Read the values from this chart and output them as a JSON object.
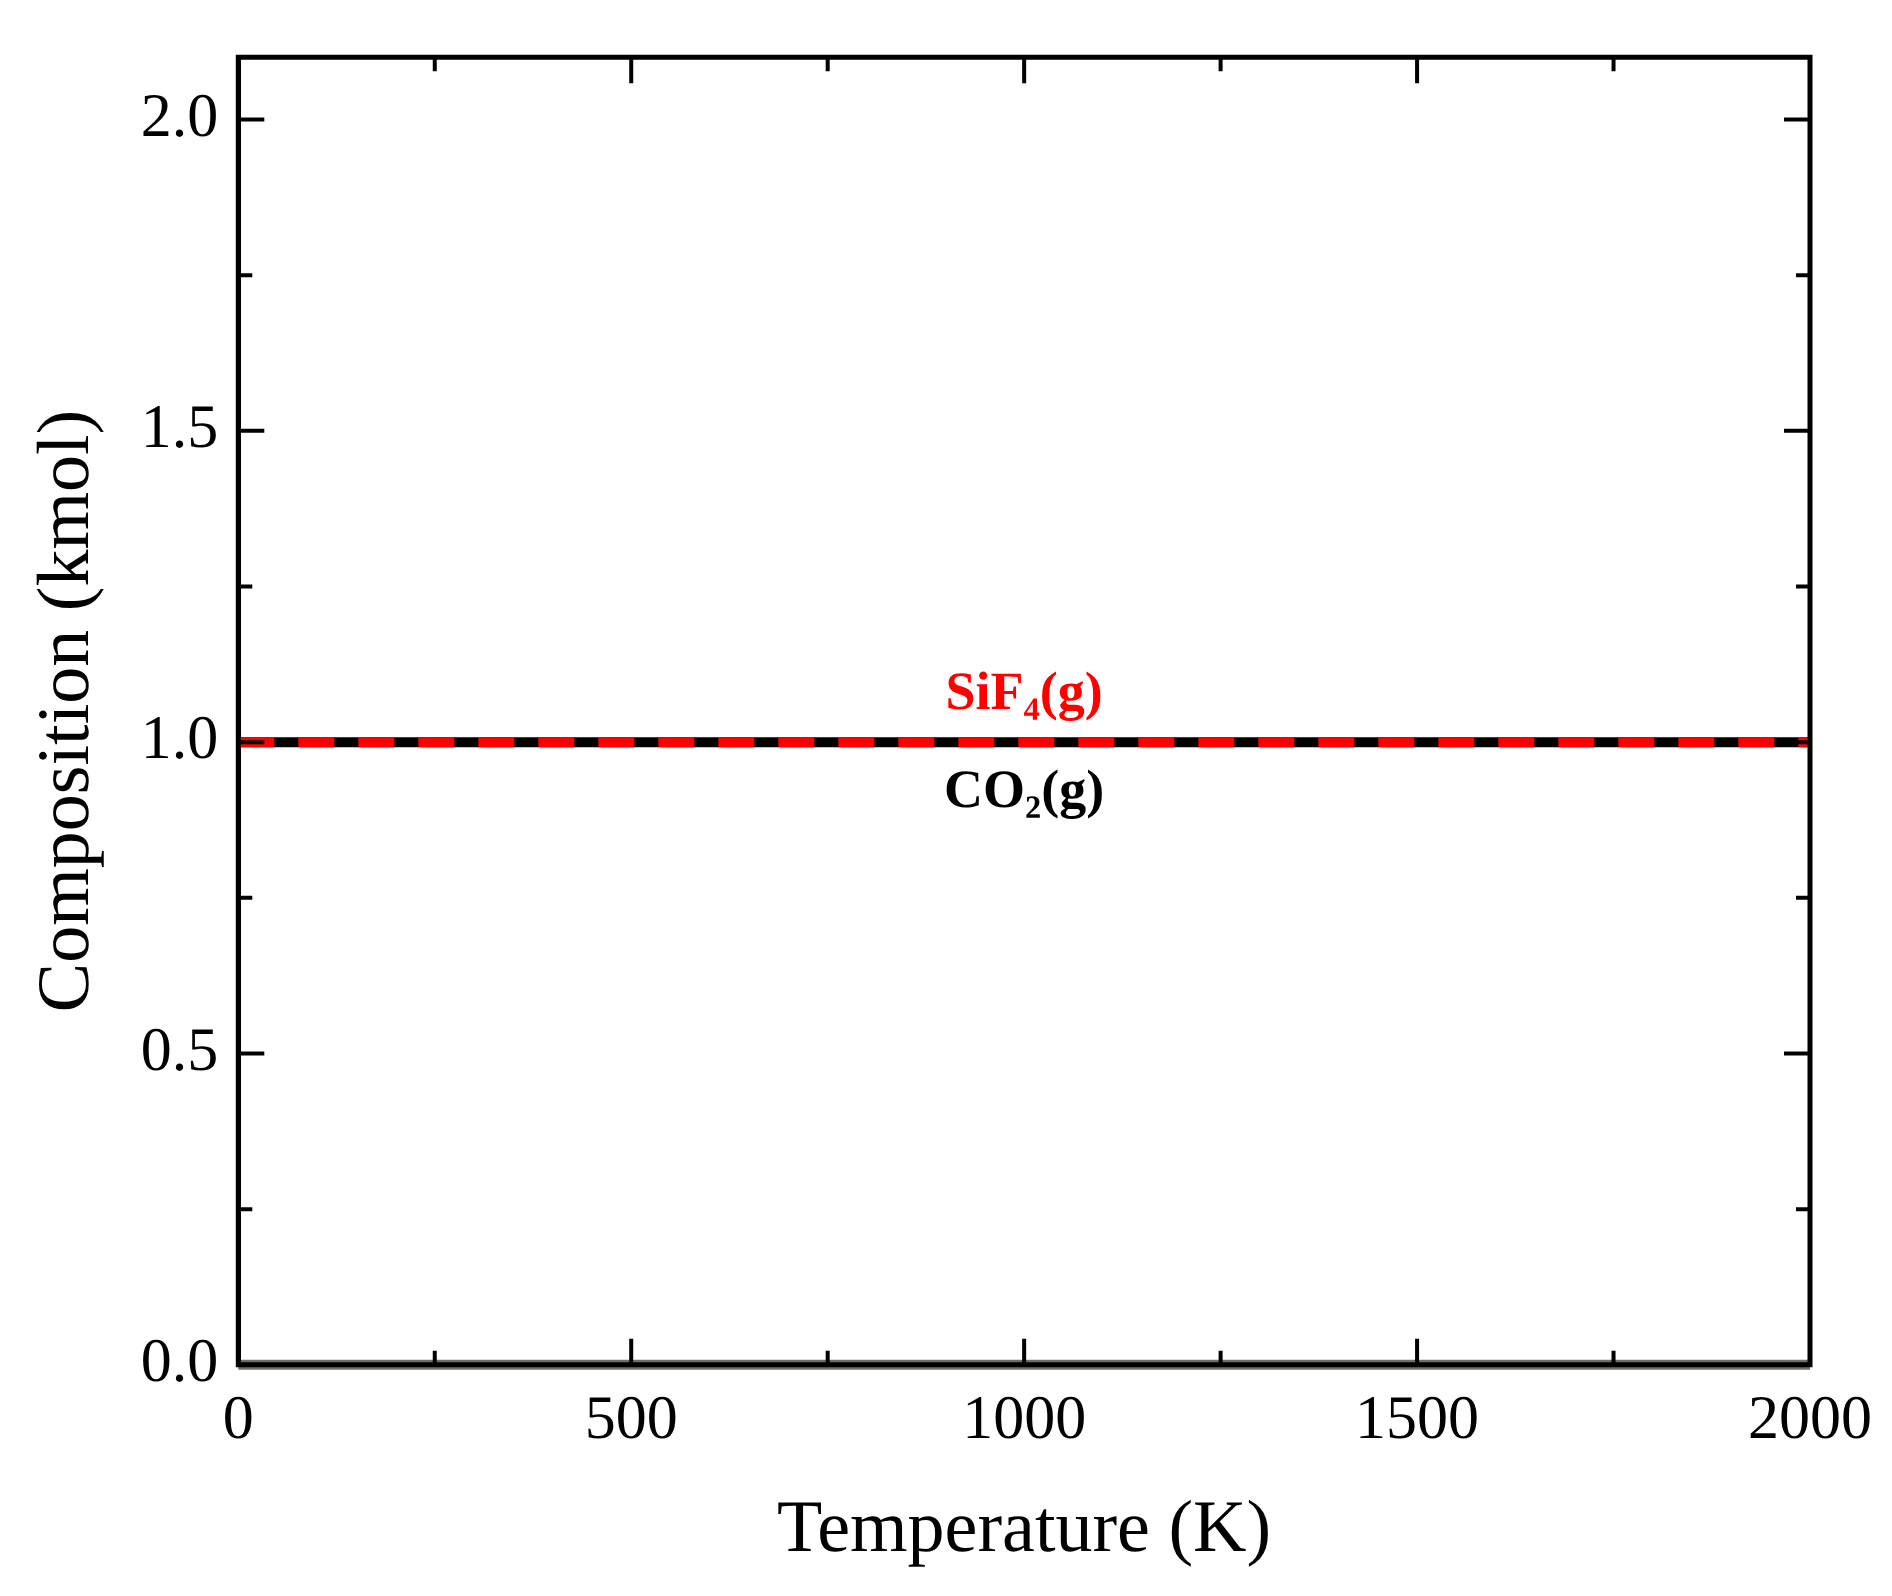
{
  "chart_data": {
    "type": "line",
    "xlabel": "Temperature (K)",
    "ylabel": "Composition (kmol)",
    "xlim": [
      0,
      2000
    ],
    "ylim": [
      0,
      2.1
    ],
    "xticks": [
      0,
      {
        "value": 250,
        "label": null
      },
      500,
      {
        "value": 750,
        "label": null
      },
      1000,
      {
        "value": 1250,
        "label": null
      },
      1500,
      {
        "value": 1750,
        "label": null
      },
      2000
    ],
    "yticks": [
      {
        "value": 0,
        "label": "0.0"
      },
      {
        "value": 0.25,
        "label": null
      },
      {
        "value": 0.5,
        "label": "0.5"
      },
      {
        "value": 0.75,
        "label": null
      },
      {
        "value": 1,
        "label": "1.0"
      },
      {
        "value": 1.25,
        "label": null
      },
      {
        "value": 1.5,
        "label": "1.5"
      },
      {
        "value": 1.75,
        "label": null
      },
      {
        "value": 2,
        "label": "2.0"
      }
    ],
    "marker": "none",
    "series": [
      {
        "name": "CO₂(g)",
        "color": "#000000",
        "line_style": "solid",
        "x": [
          0,
          500,
          1000,
          1500,
          2000
        ],
        "values": [
          1,
          1,
          1,
          1,
          1
        ]
      },
      {
        "name": "SiF₄(g)",
        "color": "#ff0000",
        "line_style": "dashed",
        "x": [
          0,
          500,
          1000,
          1500,
          2000
        ],
        "values": [
          1,
          1,
          1,
          1,
          1
        ]
      },
      {
        "color": "#707064",
        "line_style": "solid",
        "x": [
          0,
          500,
          1000,
          1500,
          2000
        ],
        "values": [
          0,
          0,
          0,
          0,
          0
        ]
      }
    ]
  }
}
